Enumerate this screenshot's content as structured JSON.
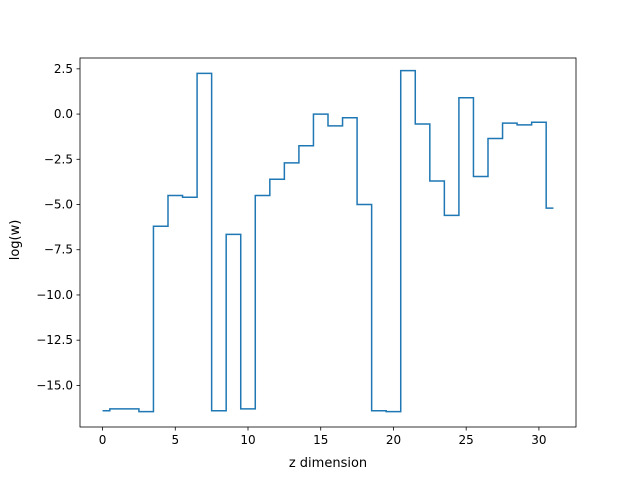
{
  "chart_data": {
    "type": "line",
    "drawstyle": "steps-mid",
    "xlabel": "z dimension",
    "ylabel": "log(w)",
    "xlim": [
      -1.55,
      32.55
    ],
    "ylim": [
      -17.3,
      3.1
    ],
    "xticks": [
      0,
      5,
      10,
      15,
      20,
      25,
      30
    ],
    "yticks": [
      2.5,
      0.0,
      -2.5,
      -5.0,
      -7.5,
      -10.0,
      -12.5,
      -15.0
    ],
    "ytick_labels": [
      "2.5",
      "0.0",
      "−2.5",
      "−5.0",
      "−7.5",
      "−10.0",
      "−12.5",
      "−15.0"
    ],
    "grid": false,
    "series": [
      {
        "color": "#1f77b4",
        "x": [
          0,
          1,
          2,
          3,
          4,
          5,
          6,
          7,
          8,
          9,
          10,
          11,
          12,
          13,
          14,
          15,
          16,
          17,
          18,
          19,
          20,
          21,
          22,
          23,
          24,
          25,
          26,
          27,
          28,
          29,
          30,
          31
        ],
        "values": [
          -16.4,
          -16.3,
          -16.3,
          -16.45,
          -6.2,
          -4.5,
          -4.6,
          2.25,
          -16.4,
          -6.65,
          -16.3,
          -4.5,
          -3.6,
          -2.7,
          -1.75,
          0.0,
          -0.65,
          -0.2,
          -5.0,
          -16.4,
          -16.45,
          2.4,
          -0.55,
          -3.7,
          -5.6,
          0.9,
          -3.45,
          -1.35,
          -0.5,
          -0.6,
          -0.45,
          -5.2
        ]
      }
    ]
  }
}
